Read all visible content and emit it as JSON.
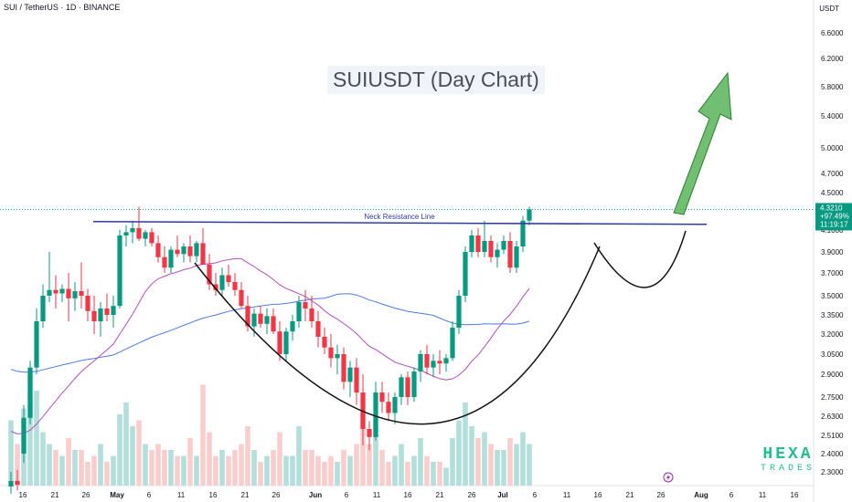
{
  "header": {
    "symbol_text": "SUI / TetherUS · 1D · BINANCE",
    "currency": "USDT"
  },
  "title": "SUIUSDT (Day Chart)",
  "annotations": {
    "neck_label": "Neck Resistance Line"
  },
  "price_tag": {
    "price": "4.3210",
    "change": "+97.49%",
    "countdown": "11:19:17"
  },
  "logo": {
    "line1": "HEXA",
    "line2": "TRADES"
  },
  "colors": {
    "up": "#089981",
    "down": "#f23645",
    "vol_up": "#b2dfdb",
    "vol_down": "#facdcd",
    "ma_blue": "#4c7be6",
    "ma_purple": "#b04fbf",
    "neck": "#2e3ba5",
    "arrow": "#4caf50"
  },
  "chart_data": {
    "type": "candlestick",
    "title": "SUIUSDT (Day Chart)",
    "y_axis_ticks": [
      "6.6000",
      "6.2000",
      "5.8000",
      "5.4000",
      "5.0000",
      "4.7000",
      "4.5000",
      "4.1000",
      "3.9000",
      "3.7000",
      "3.5000",
      "3.3500",
      "3.2000",
      "3.0500",
      "2.9000",
      "2.7500",
      "2.6300",
      "2.5100",
      "2.4000",
      "2.3000"
    ],
    "x_axis_ticks": [
      "16",
      "21",
      "26",
      "May",
      "6",
      "11",
      "16",
      "21",
      "26",
      "Jun",
      "6",
      "11",
      "16",
      "21",
      "26",
      "Jul",
      "6",
      "11",
      "16",
      "21",
      "26",
      "Aug",
      "6",
      "11",
      "16"
    ],
    "candles_ohlc": [
      [
        2.22,
        2.3,
        2.18,
        2.25
      ],
      [
        2.25,
        2.31,
        2.2,
        2.23
      ],
      [
        2.4,
        2.7,
        2.35,
        2.62
      ],
      [
        2.62,
        3.0,
        2.58,
        2.95
      ],
      [
        2.95,
        3.4,
        2.9,
        3.3
      ],
      [
        3.3,
        3.6,
        3.25,
        3.5
      ],
      [
        3.5,
        3.9,
        3.45,
        3.55
      ],
      [
        3.55,
        3.68,
        3.4,
        3.52
      ],
      [
        3.52,
        3.6,
        3.45,
        3.56
      ],
      [
        3.56,
        3.7,
        3.3,
        3.48
      ],
      [
        3.48,
        3.62,
        3.38,
        3.54
      ],
      [
        3.54,
        3.8,
        3.4,
        3.5
      ],
      [
        3.5,
        3.56,
        3.3,
        3.38
      ],
      [
        3.38,
        3.5,
        3.2,
        3.3
      ],
      [
        3.3,
        3.45,
        3.18,
        3.4
      ],
      [
        3.4,
        3.52,
        3.3,
        3.35
      ],
      [
        3.35,
        3.5,
        3.25,
        3.42
      ],
      [
        3.42,
        4.1,
        3.4,
        4.05
      ],
      [
        4.05,
        4.15,
        3.95,
        4.08
      ],
      [
        4.08,
        4.2,
        3.98,
        4.12
      ],
      [
        4.12,
        4.35,
        4.0,
        4.02
      ],
      [
        4.02,
        4.1,
        3.95,
        4.08
      ],
      [
        4.08,
        4.12,
        3.95,
        3.98
      ],
      [
        3.98,
        4.05,
        3.8,
        3.85
      ],
      [
        3.85,
        3.95,
        3.7,
        3.75
      ],
      [
        3.75,
        3.95,
        3.7,
        3.92
      ],
      [
        3.92,
        4.05,
        3.85,
        3.88
      ],
      [
        3.88,
        3.98,
        3.8,
        3.95
      ],
      [
        3.95,
        4.05,
        3.8,
        3.86
      ],
      [
        3.86,
        4.0,
        3.8,
        3.98
      ],
      [
        3.98,
        4.12,
        3.8,
        3.78
      ],
      [
        3.78,
        3.88,
        3.55,
        3.6
      ],
      [
        3.6,
        3.7,
        3.5,
        3.55
      ],
      [
        3.55,
        3.75,
        3.5,
        3.68
      ],
      [
        3.68,
        3.78,
        3.58,
        3.62
      ],
      [
        3.62,
        3.7,
        3.5,
        3.55
      ],
      [
        3.55,
        3.62,
        3.4,
        3.42
      ],
      [
        3.42,
        3.5,
        3.22,
        3.26
      ],
      [
        3.26,
        3.4,
        3.18,
        3.36
      ],
      [
        3.36,
        3.42,
        3.25,
        3.28
      ],
      [
        3.28,
        3.4,
        3.2,
        3.34
      ],
      [
        3.34,
        3.4,
        3.2,
        3.22
      ],
      [
        3.22,
        3.3,
        3.0,
        3.05
      ],
      [
        3.05,
        3.25,
        3.0,
        3.22
      ],
      [
        3.22,
        3.35,
        3.15,
        3.3
      ],
      [
        3.3,
        3.5,
        3.25,
        3.45
      ],
      [
        3.45,
        3.55,
        3.3,
        3.4
      ],
      [
        3.4,
        3.5,
        3.25,
        3.3
      ],
      [
        3.3,
        3.38,
        3.1,
        3.18
      ],
      [
        3.18,
        3.25,
        3.05,
        3.1
      ],
      [
        3.1,
        3.2,
        2.95,
        3.02
      ],
      [
        3.02,
        3.12,
        2.9,
        3.05
      ],
      [
        3.05,
        3.1,
        2.8,
        2.85
      ],
      [
        2.85,
        3.0,
        2.75,
        2.95
      ],
      [
        2.95,
        3.02,
        2.7,
        2.78
      ],
      [
        2.78,
        2.9,
        2.45,
        2.55
      ],
      [
        2.55,
        2.6,
        2.42,
        2.5
      ],
      [
        2.5,
        2.85,
        2.48,
        2.78
      ],
      [
        2.78,
        2.85,
        2.65,
        2.72
      ],
      [
        2.72,
        2.78,
        2.6,
        2.65
      ],
      [
        2.65,
        2.78,
        2.58,
        2.75
      ],
      [
        2.75,
        2.9,
        2.7,
        2.88
      ],
      [
        2.88,
        2.92,
        2.7,
        2.75
      ],
      [
        2.75,
        2.95,
        2.72,
        2.92
      ],
      [
        2.92,
        3.08,
        2.85,
        3.05
      ],
      [
        3.05,
        3.12,
        2.9,
        2.95
      ],
      [
        2.95,
        3.05,
        2.88,
        3.0
      ],
      [
        3.0,
        3.08,
        2.9,
        2.98
      ],
      [
        2.98,
        3.05,
        2.92,
        3.02
      ],
      [
        3.02,
        3.3,
        3.0,
        3.25
      ],
      [
        3.25,
        3.55,
        3.2,
        3.5
      ],
      [
        3.5,
        3.95,
        3.45,
        3.9
      ],
      [
        3.9,
        4.1,
        3.85,
        4.05
      ],
      [
        4.05,
        4.12,
        3.85,
        3.9
      ],
      [
        3.9,
        4.2,
        3.85,
        4.0
      ],
      [
        4.0,
        4.05,
        3.8,
        3.85
      ],
      [
        3.85,
        3.98,
        3.75,
        3.92
      ],
      [
        3.92,
        4.05,
        3.88,
        4.0
      ],
      [
        4.0,
        4.08,
        3.7,
        3.75
      ],
      [
        3.75,
        4.0,
        3.7,
        3.95
      ],
      [
        3.95,
        4.25,
        3.9,
        4.2
      ],
      [
        4.2,
        4.35,
        4.15,
        4.32
      ]
    ],
    "volume": [
      0.55,
      0.35,
      0.65,
      0.95,
      0.8,
      0.45,
      0.35,
      0.3,
      0.25,
      0.4,
      0.3,
      0.3,
      0.2,
      0.25,
      0.35,
      0.2,
      0.25,
      0.6,
      0.7,
      0.5,
      0.55,
      0.35,
      0.3,
      0.35,
      0.3,
      0.3,
      0.25,
      0.25,
      0.4,
      0.25,
      0.85,
      0.45,
      0.25,
      0.3,
      0.25,
      0.3,
      0.35,
      0.5,
      0.3,
      0.2,
      0.25,
      0.3,
      0.45,
      0.25,
      0.25,
      0.5,
      0.3,
      0.3,
      0.25,
      0.2,
      0.25,
      0.2,
      0.3,
      0.25,
      0.35,
      0.6,
      0.35,
      0.55,
      0.3,
      0.2,
      0.25,
      0.35,
      0.2,
      0.25,
      0.4,
      0.25,
      0.2,
      0.2,
      0.15,
      0.4,
      0.55,
      0.7,
      0.5,
      0.4,
      0.45,
      0.35,
      0.3,
      0.3,
      0.4,
      0.35,
      0.45,
      0.35
    ],
    "neck_resistance_price": 4.18,
    "ylim": [
      2.2,
      7.0
    ]
  }
}
